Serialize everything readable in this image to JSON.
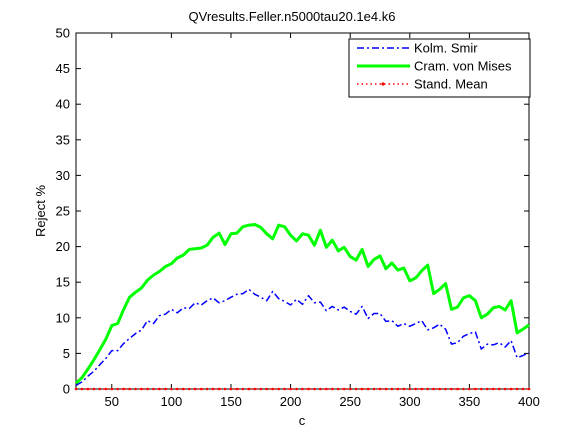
{
  "chart_data": {
    "type": "line",
    "title": "QVresults.Feller.n5000tau20.1e4.k6",
    "xlabel": "c",
    "ylabel": "Reject %",
    "xlim": [
      20,
      400
    ],
    "ylim": [
      0,
      50
    ],
    "xticks": [
      "50",
      "100",
      "150",
      "200",
      "250",
      "300",
      "350",
      "400"
    ],
    "yticks": [
      "0",
      "5",
      "10",
      "15",
      "20",
      "25",
      "30",
      "35",
      "40",
      "45",
      "50"
    ],
    "grid": false,
    "legend_position": "top-right",
    "x": [
      20,
      25,
      30,
      35,
      40,
      45,
      50,
      55,
      60,
      65,
      70,
      75,
      80,
      85,
      90,
      95,
      100,
      105,
      110,
      115,
      120,
      125,
      130,
      135,
      140,
      145,
      150,
      155,
      160,
      165,
      170,
      175,
      180,
      185,
      190,
      195,
      200,
      205,
      210,
      215,
      220,
      225,
      230,
      235,
      240,
      245,
      250,
      255,
      260,
      265,
      270,
      275,
      280,
      285,
      290,
      295,
      300,
      305,
      310,
      315,
      320,
      325,
      330,
      335,
      340,
      345,
      350,
      355,
      360,
      365,
      370,
      375,
      380,
      385,
      390,
      395,
      400
    ],
    "series": [
      {
        "name": "Kolm. Smir",
        "color": "#0000ff",
        "style": "dashdot",
        "values": [
          0.5,
          1.0,
          1.8,
          2.5,
          3.4,
          4.3,
          5.4,
          5.4,
          6.4,
          7.1,
          7.8,
          8.3,
          9.6,
          9.2,
          10.3,
          10.5,
          11.2,
          10.7,
          11.4,
          11.3,
          12.1,
          11.8,
          12.4,
          12.8,
          12.1,
          12.4,
          12.9,
          13.3,
          13.4,
          14.0,
          13.3,
          12.9,
          12.4,
          13.7,
          12.7,
          12.3,
          11.8,
          12.6,
          11.9,
          13.1,
          12.1,
          12.2,
          11.0,
          11.6,
          11.1,
          11.5,
          10.9,
          10.5,
          11.6,
          9.9,
          10.6,
          10.6,
          9.5,
          9.6,
          8.8,
          9.2,
          8.8,
          9.2,
          9.6,
          8.3,
          8.6,
          9.1,
          8.4,
          6.3,
          6.5,
          7.4,
          7.8,
          8.0,
          5.6,
          6.3,
          6.2,
          6.5,
          5.9,
          6.8,
          4.4,
          4.7,
          5.1
        ]
      },
      {
        "name": "Cram. von Mises",
        "color": "#00ff00",
        "style": "solid",
        "values": [
          0.8,
          1.6,
          2.8,
          4.1,
          5.5,
          7.0,
          8.9,
          9.2,
          11.2,
          12.9,
          13.6,
          14.2,
          15.3,
          16.0,
          16.5,
          17.2,
          17.6,
          18.4,
          18.8,
          19.6,
          19.7,
          19.8,
          20.2,
          21.3,
          21.9,
          20.3,
          21.8,
          21.9,
          22.8,
          23.0,
          23.1,
          22.7,
          21.8,
          21.1,
          23.0,
          22.8,
          21.6,
          20.8,
          21.8,
          21.6,
          20.2,
          22.3,
          19.9,
          20.9,
          19.4,
          19.9,
          18.6,
          18.1,
          19.6,
          17.2,
          18.2,
          18.7,
          16.9,
          17.7,
          16.7,
          17.0,
          15.2,
          15.6,
          16.6,
          17.4,
          13.4,
          14.0,
          14.8,
          11.2,
          11.5,
          12.8,
          13.1,
          12.4,
          10.0,
          10.5,
          11.4,
          11.6,
          11.1,
          12.4,
          7.9,
          8.4,
          9.0
        ]
      },
      {
        "name": "Stand. Mean",
        "color": "#ff0000",
        "style": "dotted",
        "values": [
          0,
          0,
          0,
          0,
          0,
          0,
          0,
          0,
          0,
          0,
          0,
          0,
          0,
          0,
          0,
          0,
          0,
          0,
          0,
          0,
          0,
          0,
          0,
          0,
          0,
          0,
          0,
          0,
          0,
          0,
          0,
          0,
          0,
          0,
          0,
          0,
          0,
          0,
          0,
          0,
          0,
          0,
          0,
          0,
          0,
          0,
          0,
          0,
          0,
          0,
          0,
          0,
          0,
          0,
          0,
          0,
          0,
          0,
          0,
          0,
          0,
          0,
          0,
          0,
          0,
          0,
          0,
          0,
          0,
          0,
          0,
          0,
          0,
          0,
          0,
          0,
          0
        ]
      }
    ]
  }
}
